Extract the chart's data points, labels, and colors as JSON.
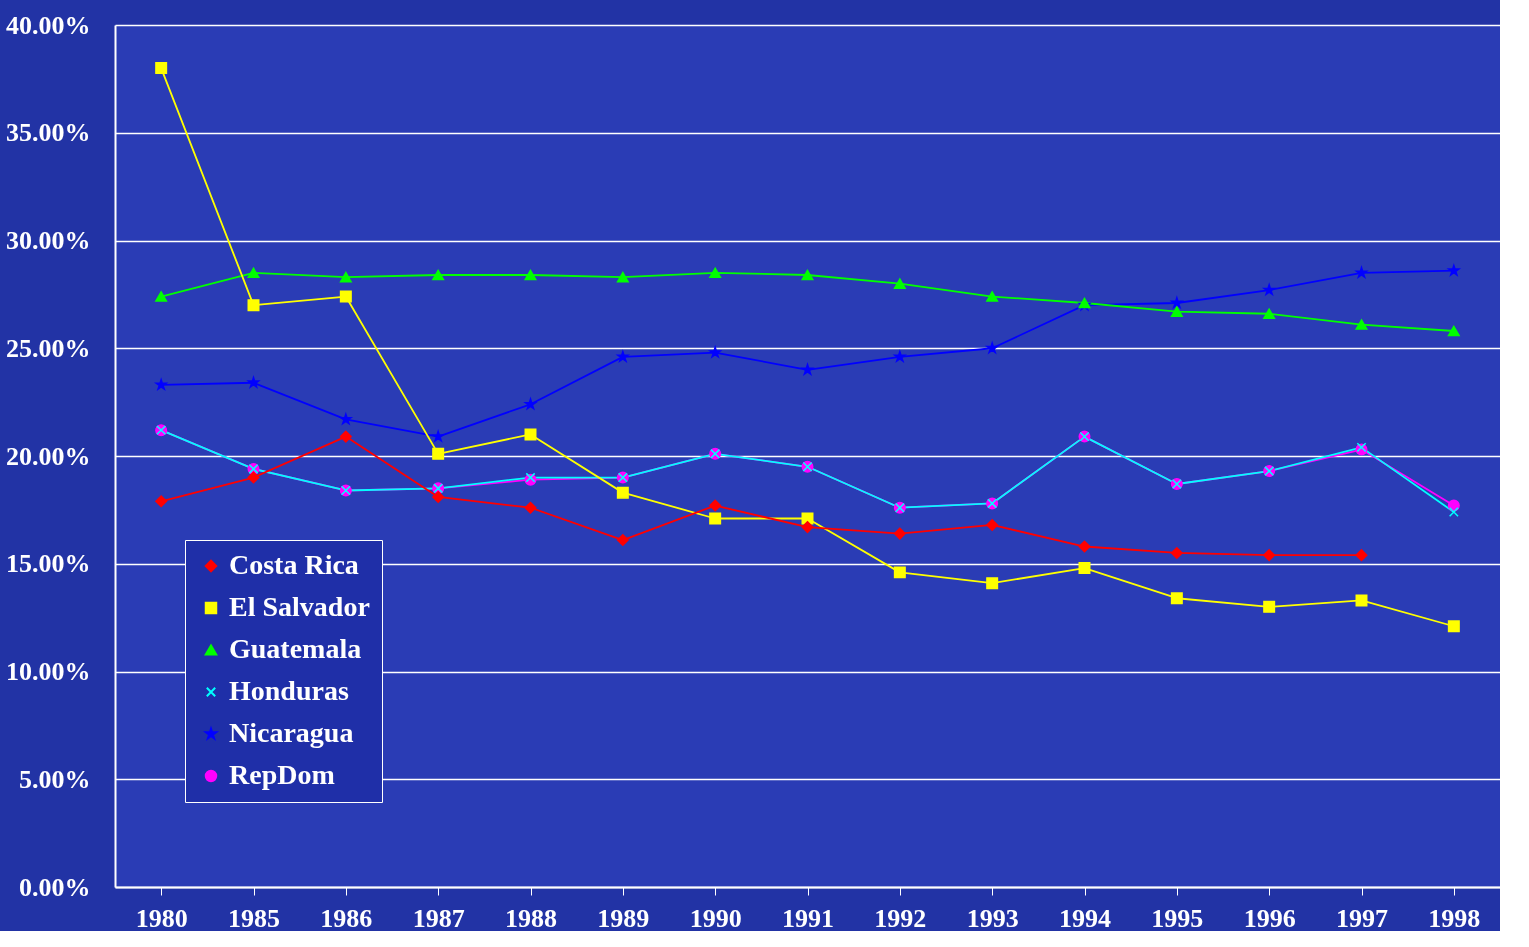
{
  "chart_data": {
    "type": "line",
    "categories": [
      "1980",
      "1985",
      "1986",
      "1987",
      "1988",
      "1989",
      "1990",
      "1991",
      "1992",
      "1993",
      "1994",
      "1995",
      "1996",
      "1997",
      "1998"
    ],
    "series": [
      {
        "name": "Costa Rica",
        "color": "#ff0000",
        "marker": "diamond",
        "values": [
          17.9,
          19.0,
          20.9,
          18.1,
          17.6,
          16.1,
          17.7,
          16.7,
          16.4,
          16.8,
          15.8,
          15.5,
          15.4,
          15.4,
          null
        ]
      },
      {
        "name": "El Salvador",
        "color": "#ffff00",
        "marker": "square",
        "values": [
          38.0,
          27.0,
          27.4,
          20.1,
          21.0,
          18.3,
          17.1,
          17.1,
          14.6,
          14.1,
          14.8,
          13.4,
          13.0,
          13.3,
          12.1
        ]
      },
      {
        "name": "Guatemala",
        "color": "#00ff00",
        "marker": "triangle",
        "values": [
          27.4,
          28.5,
          28.3,
          28.4,
          28.4,
          28.3,
          28.5,
          28.4,
          28.0,
          27.4,
          27.1,
          26.7,
          26.6,
          26.1,
          25.8
        ]
      },
      {
        "name": "Honduras",
        "color": "#00ffff",
        "marker": "cross",
        "values": [
          21.2,
          19.4,
          18.4,
          18.5,
          19.0,
          19.0,
          20.1,
          19.5,
          17.6,
          17.8,
          20.9,
          18.7,
          19.3,
          20.4,
          17.4
        ]
      },
      {
        "name": "Nicaragua",
        "color": "#0000ff",
        "marker": "star",
        "values": [
          23.3,
          23.4,
          21.7,
          20.9,
          22.4,
          24.6,
          24.8,
          24.0,
          24.6,
          25.0,
          27.0,
          27.1,
          27.7,
          28.5,
          28.6
        ]
      },
      {
        "name": "RepDom",
        "color": "#ff00ff",
        "marker": "circle",
        "values": [
          21.2,
          19.4,
          18.4,
          18.5,
          18.9,
          19.0,
          20.1,
          19.5,
          17.6,
          17.8,
          20.9,
          18.7,
          19.3,
          20.3,
          17.7
        ]
      }
    ],
    "ylim": [
      0,
      40
    ],
    "yticks": [
      {
        "value": 0,
        "label": "0.00%"
      },
      {
        "value": 5,
        "label": "5.00%"
      },
      {
        "value": 10,
        "label": "10.00%"
      },
      {
        "value": 15,
        "label": "15.00%"
      },
      {
        "value": 20,
        "label": "20.00%"
      },
      {
        "value": 25,
        "label": "25.00%"
      },
      {
        "value": 30,
        "label": "30.00%"
      },
      {
        "value": 35,
        "label": "35.00%"
      },
      {
        "value": 40,
        "label": "40.00%"
      }
    ],
    "grid": "y",
    "legend": "bottom left",
    "line_style": "solid"
  }
}
